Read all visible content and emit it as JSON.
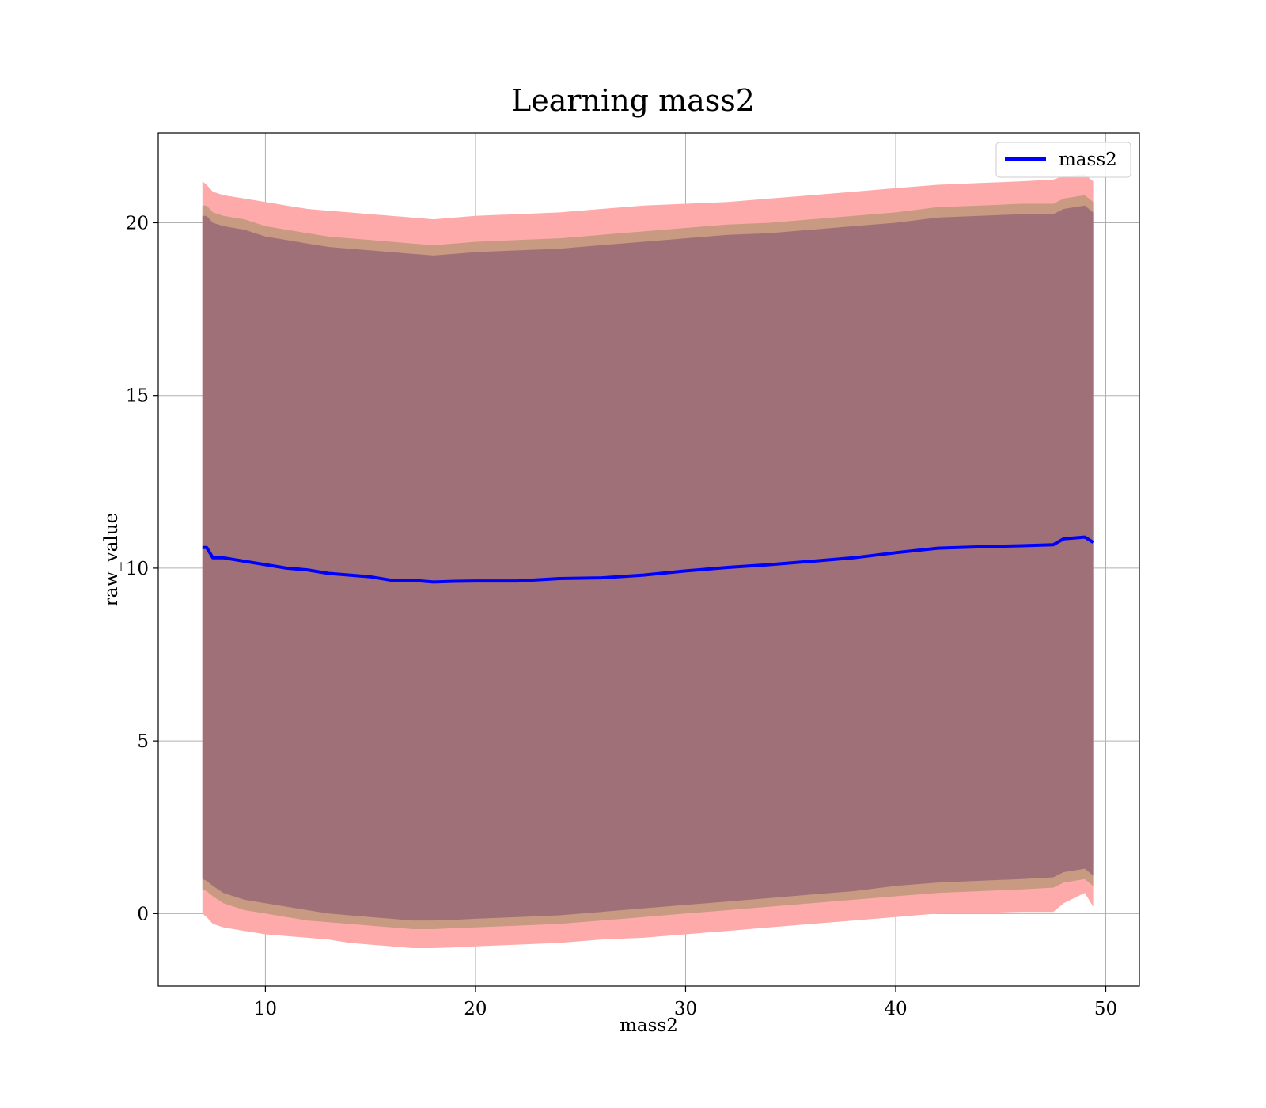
{
  "chart_data": {
    "type": "area",
    "title": "Learning mass2",
    "xlabel": "mass2",
    "ylabel": "raw_value",
    "xlim": [
      4.9,
      51.6
    ],
    "ylim": [
      -2.1,
      22.6
    ],
    "x_ticks": [
      10,
      20,
      30,
      40,
      50
    ],
    "y_ticks": [
      0,
      5,
      10,
      15,
      20
    ],
    "grid": true,
    "legend": {
      "position": "top-right",
      "entries": [
        "mass2"
      ]
    },
    "colors": {
      "line": "#0000ff",
      "outer_band": "#ffaaaa",
      "middle_band": "#c89a82",
      "inner_band": "#a07078",
      "grid": "#b0b0b0"
    },
    "x": [
      7.0,
      7.2,
      7.5,
      8.0,
      9.0,
      10.0,
      11.0,
      12.0,
      13.0,
      14.0,
      15.0,
      16.0,
      17.0,
      18.0,
      19.0,
      20.0,
      22.0,
      24.0,
      26.0,
      28.0,
      30.0,
      32.0,
      34.0,
      36.0,
      38.0,
      40.0,
      42.0,
      44.0,
      46.0,
      47.5,
      48.0,
      49.0,
      49.4
    ],
    "series": [
      {
        "name": "mass2",
        "role": "mean",
        "values": [
          10.6,
          10.6,
          10.3,
          10.3,
          10.2,
          10.1,
          10.0,
          9.95,
          9.85,
          9.8,
          9.75,
          9.65,
          9.65,
          9.6,
          9.62,
          9.63,
          9.63,
          9.7,
          9.72,
          9.8,
          9.92,
          10.02,
          10.1,
          10.2,
          10.3,
          10.45,
          10.58,
          10.62,
          10.65,
          10.68,
          10.85,
          10.9,
          10.75
        ]
      },
      {
        "role": "outer_band_upper",
        "values": [
          21.2,
          21.1,
          20.9,
          20.8,
          20.7,
          20.6,
          20.5,
          20.4,
          20.35,
          20.3,
          20.25,
          20.2,
          20.15,
          20.1,
          20.15,
          20.2,
          20.25,
          20.3,
          20.4,
          20.5,
          20.55,
          20.6,
          20.7,
          20.8,
          20.9,
          21.0,
          21.1,
          21.15,
          21.2,
          21.25,
          21.35,
          21.4,
          21.2
        ]
      },
      {
        "role": "middle_band_upper",
        "values": [
          20.5,
          20.5,
          20.3,
          20.2,
          20.1,
          19.9,
          19.8,
          19.7,
          19.6,
          19.55,
          19.5,
          19.45,
          19.4,
          19.35,
          19.4,
          19.45,
          19.5,
          19.55,
          19.65,
          19.75,
          19.85,
          19.95,
          20.0,
          20.1,
          20.2,
          20.3,
          20.45,
          20.5,
          20.55,
          20.55,
          20.7,
          20.8,
          20.6
        ]
      },
      {
        "role": "inner_band_upper",
        "values": [
          20.2,
          20.2,
          20.0,
          19.9,
          19.8,
          19.6,
          19.5,
          19.4,
          19.3,
          19.25,
          19.2,
          19.15,
          19.1,
          19.05,
          19.1,
          19.15,
          19.2,
          19.25,
          19.35,
          19.45,
          19.55,
          19.65,
          19.7,
          19.8,
          19.9,
          20.0,
          20.15,
          20.2,
          20.25,
          20.25,
          20.4,
          20.5,
          20.3
        ]
      },
      {
        "role": "inner_band_lower",
        "values": [
          1.0,
          0.95,
          0.8,
          0.6,
          0.4,
          0.3,
          0.2,
          0.1,
          0.0,
          -0.05,
          -0.1,
          -0.15,
          -0.2,
          -0.2,
          -0.18,
          -0.15,
          -0.1,
          -0.05,
          0.05,
          0.15,
          0.25,
          0.35,
          0.45,
          0.55,
          0.65,
          0.8,
          0.9,
          0.95,
          1.0,
          1.05,
          1.2,
          1.3,
          1.1
        ]
      },
      {
        "role": "middle_band_lower",
        "values": [
          0.7,
          0.65,
          0.5,
          0.3,
          0.1,
          0.0,
          -0.1,
          -0.2,
          -0.25,
          -0.3,
          -0.35,
          -0.4,
          -0.45,
          -0.45,
          -0.42,
          -0.4,
          -0.35,
          -0.3,
          -0.2,
          -0.1,
          0.0,
          0.1,
          0.2,
          0.3,
          0.4,
          0.5,
          0.6,
          0.65,
          0.7,
          0.75,
          0.9,
          1.0,
          0.8
        ]
      },
      {
        "role": "outer_band_lower",
        "values": [
          0.0,
          -0.1,
          -0.3,
          -0.4,
          -0.5,
          -0.6,
          -0.65,
          -0.7,
          -0.75,
          -0.85,
          -0.9,
          -0.95,
          -1.0,
          -1.0,
          -0.98,
          -0.95,
          -0.9,
          -0.85,
          -0.75,
          -0.7,
          -0.6,
          -0.5,
          -0.4,
          -0.3,
          -0.2,
          -0.1,
          0.0,
          0.02,
          0.05,
          0.05,
          0.3,
          0.6,
          0.2
        ]
      }
    ]
  }
}
